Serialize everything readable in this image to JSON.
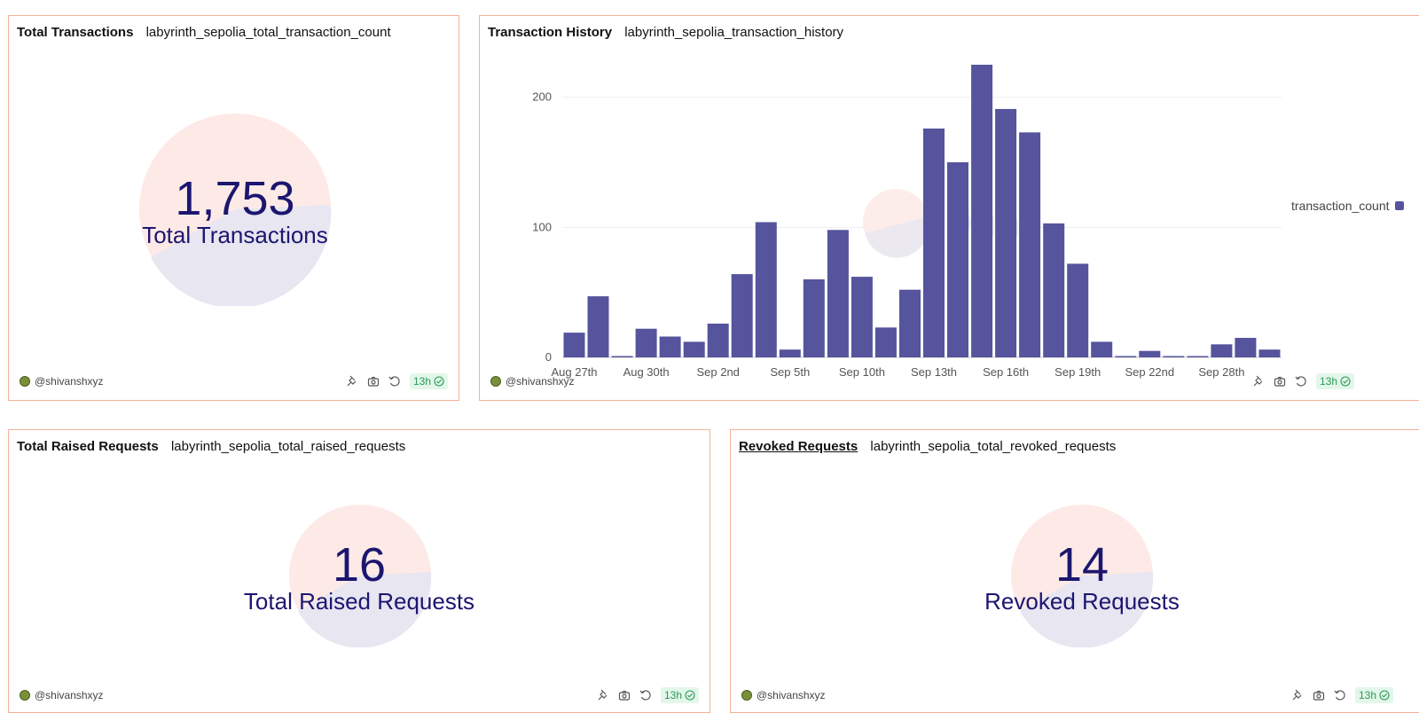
{
  "cards": {
    "total_transactions": {
      "title": "Total Transactions",
      "query": "labyrinth_sepolia_total_transaction_count",
      "value": "1,753",
      "label": "Total Transactions",
      "author": "@shivanshxyz",
      "age": "13h"
    },
    "transaction_history": {
      "title": "Transaction History",
      "query": "labyrinth_sepolia_transaction_history",
      "author": "@shivanshxyz",
      "age": "13h",
      "legend": "transaction_count",
      "watermark": "Dune"
    },
    "raised_requests": {
      "title": "Total Raised Requests",
      "query": "labyrinth_sepolia_total_raised_requests",
      "value": "16",
      "label": "Total Raised Requests",
      "author": "@shivanshxyz",
      "age": "13h"
    },
    "revoked_requests": {
      "title": "Revoked Requests",
      "query": "labyrinth_sepolia_total_revoked_requests",
      "value": "14",
      "label": "Revoked Requests",
      "author": "@shivanshxyz",
      "age": "13h"
    }
  },
  "icons": [
    "pin-icon",
    "camera-icon",
    "refresh-icon",
    "check-circle-icon"
  ],
  "colors": {
    "bar": "#55549c",
    "card_border": "#f5b09a",
    "counter_text": "#1c1670",
    "badge_bg": "#e3f6ea",
    "badge_text": "#2a9b56"
  },
  "chart_data": {
    "type": "bar",
    "title": "",
    "xlabel": "",
    "ylabel": "",
    "ylim": [
      0,
      225
    ],
    "yticks": [
      0,
      100,
      200
    ],
    "grid": true,
    "legend_position": "right",
    "xtick_labels": [
      "Aug 27th",
      "Aug 30th",
      "Sep 2nd",
      "Sep 5th",
      "Sep 10th",
      "Sep 13th",
      "Sep 16th",
      "Sep 19th",
      "Sep 22nd",
      "Sep 28th"
    ],
    "series": [
      {
        "name": "transaction_count",
        "values": [
          19,
          47,
          1,
          22,
          16,
          12,
          26,
          64,
          104,
          6,
          60,
          98,
          62,
          23,
          52,
          176,
          150,
          225,
          191,
          173,
          103,
          72,
          12,
          1,
          5,
          1,
          1,
          10,
          15,
          6
        ]
      }
    ]
  }
}
